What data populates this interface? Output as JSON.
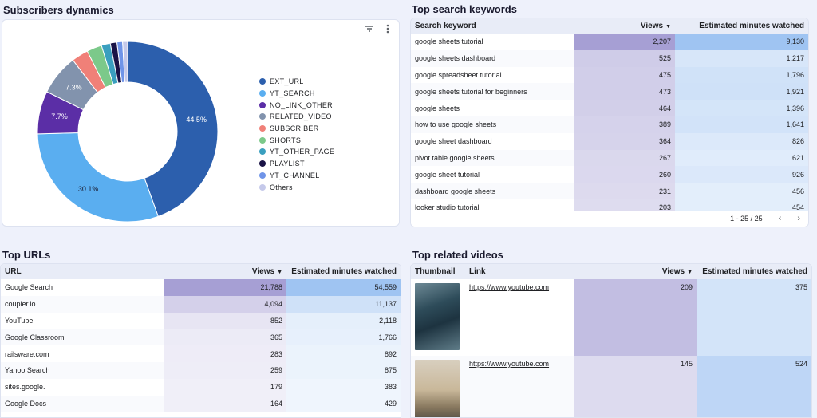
{
  "subscribers": {
    "title": "Subscribers dynamics",
    "filter_icon": "filter-icon",
    "more_icon": "more-vert-icon",
    "legend": [
      {
        "label": "EXT_URL",
        "color": "#2c5fad"
      },
      {
        "label": "YT_SEARCH",
        "color": "#5aaef0"
      },
      {
        "label": "NO_LINK_OTHER",
        "color": "#5b2ea6"
      },
      {
        "label": "RELATED_VIDEO",
        "color": "#8293ad"
      },
      {
        "label": "SUBSCRIBER",
        "color": "#f08078"
      },
      {
        "label": "SHORTS",
        "color": "#7cc98a"
      },
      {
        "label": "YT_OTHER_PAGE",
        "color": "#3a9fbf"
      },
      {
        "label": "PLAYLIST",
        "color": "#1a1346"
      },
      {
        "label": "YT_CHANNEL",
        "color": "#6f94e8"
      },
      {
        "label": "Others",
        "color": "#c5c9ea"
      }
    ],
    "chart_data": {
      "type": "pie",
      "categories": [
        "EXT_URL",
        "YT_SEARCH",
        "NO_LINK_OTHER",
        "RELATED_VIDEO",
        "SUBSCRIBER",
        "SHORTS",
        "YT_OTHER_PAGE",
        "PLAYLIST",
        "YT_CHANNEL",
        "Others"
      ],
      "values": [
        44.5,
        30.1,
        7.7,
        7.3,
        3.0,
        2.7,
        1.6,
        1.2,
        1.0,
        0.9
      ],
      "labels_shown": [
        "44.5%",
        "30.1%",
        "7.7%",
        "7.3%"
      ]
    }
  },
  "keywords": {
    "title": "Top search keywords",
    "headers": {
      "keyword": "Search keyword",
      "views": "Views",
      "minutes": "Estimated minutes watched"
    },
    "rows": [
      {
        "keyword": "google sheets tutorial",
        "views": "2,207",
        "minutes": "9,130"
      },
      {
        "keyword": "google sheets dashboard",
        "views": "525",
        "minutes": "1,217"
      },
      {
        "keyword": "google spreadsheet tutorial",
        "views": "475",
        "minutes": "1,796"
      },
      {
        "keyword": "google sheets tutorial for beginners",
        "views": "473",
        "minutes": "1,921"
      },
      {
        "keyword": "google sheets",
        "views": "464",
        "minutes": "1,396"
      },
      {
        "keyword": "how to use google sheets",
        "views": "389",
        "minutes": "1,641"
      },
      {
        "keyword": "google sheet dashboard",
        "views": "364",
        "minutes": "826"
      },
      {
        "keyword": "pivot table google sheets",
        "views": "267",
        "minutes": "621"
      },
      {
        "keyword": "google sheet tutorial",
        "views": "260",
        "minutes": "926"
      },
      {
        "keyword": "dashboard google sheets",
        "views": "231",
        "minutes": "456"
      },
      {
        "keyword": "looker studio tutorial",
        "views": "203",
        "minutes": "454"
      }
    ],
    "pager": "1 - 25 / 25",
    "prev_icon": "chevron-left-icon",
    "next_icon": "chevron-right-icon"
  },
  "urls": {
    "title": "Top URLs",
    "headers": {
      "url": "URL",
      "views": "Views",
      "minutes": "Estimated minutes watched"
    },
    "rows": [
      {
        "url": "Google Search",
        "views": "21,788",
        "minutes": "54,559"
      },
      {
        "url": "coupler.io",
        "views": "4,094",
        "minutes": "11,137"
      },
      {
        "url": "YouTube",
        "views": "852",
        "minutes": "2,118"
      },
      {
        "url": "Google Classroom",
        "views": "365",
        "minutes": "1,766"
      },
      {
        "url": "railsware.com",
        "views": "283",
        "minutes": "892"
      },
      {
        "url": "Yahoo Search",
        "views": "259",
        "minutes": "875"
      },
      {
        "url": "sites.google.",
        "views": "179",
        "minutes": "383"
      },
      {
        "url": "Google Docs",
        "views": "164",
        "minutes": "429"
      }
    ]
  },
  "related": {
    "title": "Top related videos",
    "headers": {
      "thumbnail": "Thumbnail",
      "link": "Link",
      "views": "Views",
      "minutes": "Estimated minutes watched"
    },
    "rows": [
      {
        "thumb": "ocean-wave-thumbnail",
        "link": "https://www.youtube.com",
        "views": "209",
        "minutes": "375"
      },
      {
        "thumb": "cliff-sunset-thumbnail",
        "link": "https://www.youtube.com",
        "views": "145",
        "minutes": "524"
      }
    ]
  }
}
